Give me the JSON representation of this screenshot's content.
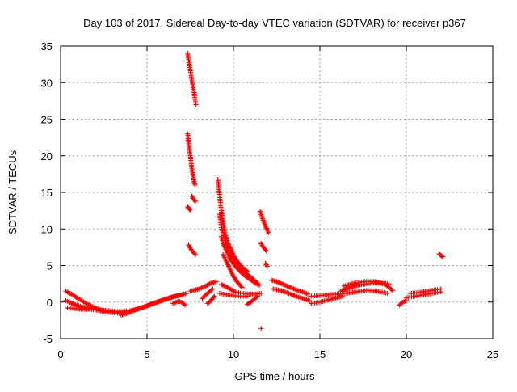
{
  "chart_data": {
    "type": "scatter",
    "title": "Day 103 of 2017, Sidereal Day-to-day VTEC variation (SDTVAR) for receiver p367",
    "xlabel": "GPS time / hours",
    "ylabel": "SDTVAR / TECUs",
    "xlim": [
      0,
      25
    ],
    "ylim": [
      -5,
      35
    ],
    "xticks": [
      "0",
      "5",
      "10",
      "15",
      "20",
      "25"
    ],
    "yticks": [
      "-5",
      "0",
      "5",
      "10",
      "15",
      "20",
      "25",
      "30",
      "35"
    ],
    "grid": true,
    "marker": "+",
    "legend": "none",
    "series": [
      {
        "name": "SDTVAR",
        "color": "#ff0000",
        "segments": [
          {
            "x": [
              0.3,
              0.7,
              1.0,
              1.5,
              2.0,
              2.5,
              3.0,
              3.5,
              3.8
            ],
            "y": [
              1.5,
              1.0,
              0.5,
              -0.2,
              -0.8,
              -1.2,
              -1.4,
              -1.3,
              -1.2
            ]
          },
          {
            "x": [
              0.3,
              0.8,
              1.3,
              1.8,
              2.3,
              2.8,
              3.3,
              3.7
            ],
            "y": [
              0.2,
              -0.3,
              -0.7,
              -1.0,
              -1.2,
              -1.4,
              -1.5,
              -1.5
            ]
          },
          {
            "x": [
              0.4,
              0.9,
              1.4,
              1.9,
              2.4,
              2.9,
              3.4,
              3.7
            ],
            "y": [
              -0.8,
              -0.9,
              -1.0,
              -1.0,
              -1.1,
              -1.2,
              -1.3,
              -1.4
            ]
          },
          {
            "x": [
              3.5,
              3.9,
              4.3,
              4.8,
              5.3,
              5.8,
              6.3,
              6.8,
              7.3
            ],
            "y": [
              -1.8,
              -1.5,
              -1.1,
              -0.7,
              -0.2,
              0.2,
              0.6,
              0.9,
              1.2
            ]
          },
          {
            "x": [
              4.0,
              4.5,
              5.0,
              5.5,
              6.0,
              6.5,
              7.0
            ],
            "y": [
              -1.2,
              -0.9,
              -0.5,
              -0.1,
              0.3,
              0.7,
              1.0
            ]
          },
          {
            "x": [
              6.5,
              6.8,
              7.0,
              7.2
            ],
            "y": [
              -0.2,
              0.1,
              0.0,
              -0.4
            ]
          },
          {
            "x": [
              7.35,
              7.45,
              7.55,
              7.65,
              7.75,
              7.82
            ],
            "y": [
              34.0,
              32.5,
              31.0,
              29.5,
              28.2,
              27.0
            ]
          },
          {
            "x": [
              7.35,
              7.42,
              7.5,
              7.58,
              7.65,
              7.72,
              7.78
            ],
            "y": [
              23.0,
              21.5,
              20.0,
              18.5,
              17.5,
              16.5,
              16.0
            ]
          },
          {
            "x": [
              7.6,
              7.7,
              7.8
            ],
            "y": [
              14.5,
              14.0,
              13.8
            ]
          },
          {
            "x": [
              7.35,
              7.42,
              7.5
            ],
            "y": [
              13.0,
              12.8,
              12.6
            ]
          },
          {
            "x": [
              7.4,
              7.5,
              7.6,
              7.7,
              7.8
            ],
            "y": [
              7.8,
              7.4,
              7.0,
              6.8,
              6.5
            ]
          },
          {
            "x": [
              7.5,
              8.0,
              8.4,
              8.7,
              9.0
            ],
            "y": [
              1.5,
              1.8,
              2.2,
              2.6,
              2.8
            ]
          },
          {
            "x": [
              8.2,
              8.4,
              8.6,
              8.8
            ],
            "y": [
              0.5,
              1.0,
              1.4,
              1.8
            ]
          },
          {
            "x": [
              8.5,
              8.7,
              8.9
            ],
            "y": [
              -0.2,
              0.2,
              0.8
            ]
          },
          {
            "x": [
              9.1,
              9.2,
              9.3,
              9.4,
              9.5,
              9.7,
              9.9,
              10.1,
              10.4,
              10.8
            ],
            "y": [
              16.8,
              14.5,
              12.5,
              11.0,
              9.5,
              8.0,
              7.0,
              6.0,
              5.0,
              4.2
            ]
          },
          {
            "x": [
              9.2,
              9.3,
              9.5,
              9.7,
              9.9,
              10.2,
              10.5,
              10.8,
              11.1,
              11.4
            ],
            "y": [
              12.0,
              10.2,
              8.6,
              7.3,
              6.2,
              5.3,
              4.5,
              3.8,
              3.2,
              2.6
            ]
          },
          {
            "x": [
              9.3,
              9.4,
              9.6,
              9.8,
              10.0,
              10.3,
              10.6,
              10.9,
              11.2,
              11.5
            ],
            "y": [
              9.0,
              8.0,
              7.0,
              6.0,
              5.2,
              4.4,
              3.7,
              3.2,
              2.7,
              2.3
            ]
          },
          {
            "x": [
              9.4,
              9.6,
              9.8,
              10.0,
              10.2,
              10.5
            ],
            "y": [
              6.5,
              5.5,
              4.5,
              3.5,
              2.8,
              2.0
            ]
          },
          {
            "x": [
              9.3,
              9.5,
              9.8,
              10.1,
              10.5,
              10.9,
              11.3,
              11.6
            ],
            "y": [
              2.4,
              2.2,
              1.8,
              1.4,
              1.2,
              1.1,
              1.1,
              1.2
            ]
          },
          {
            "x": [
              9.2,
              9.6,
              10.0,
              10.4,
              10.8
            ],
            "y": [
              1.2,
              1.0,
              0.9,
              0.8,
              0.8
            ]
          },
          {
            "x": [
              10.8,
              11.0,
              11.2,
              11.4
            ],
            "y": [
              -0.3,
              0.0,
              0.4,
              0.8
            ]
          },
          {
            "x": [
              11.55,
              11.65,
              11.75,
              11.85,
              11.95,
              12.02
            ],
            "y": [
              12.4,
              11.6,
              11.0,
              10.4,
              9.9,
              9.5
            ]
          },
          {
            "x": [
              11.6,
              11.7,
              11.8,
              11.9
            ],
            "y": [
              8.0,
              7.6,
              7.3,
              7.0
            ]
          },
          {
            "x": [
              11.85,
              11.95
            ],
            "y": [
              5.3,
              4.9
            ]
          },
          {
            "x": [
              11.6
            ],
            "y": [
              -3.6
            ]
          },
          {
            "x": [
              12.2,
              12.5,
              12.8,
              13.1,
              13.4,
              13.7,
              14.0,
              14.3
            ],
            "y": [
              3.0,
              2.8,
              2.5,
              2.2,
              1.9,
              1.6,
              1.4,
              1.1
            ]
          },
          {
            "x": [
              12.3,
              12.7,
              13.2,
              13.6,
              14.0,
              14.4
            ],
            "y": [
              1.8,
              1.6,
              1.2,
              0.8,
              0.5,
              0.2
            ]
          },
          {
            "x": [
              14.5,
              15.0,
              15.5,
              16.0,
              16.3
            ],
            "y": [
              -0.2,
              0.0,
              0.3,
              0.6,
              0.8
            ]
          },
          {
            "x": [
              14.5,
              15.0,
              15.5,
              16.0,
              16.4
            ],
            "y": [
              0.8,
              0.9,
              1.0,
              1.1,
              1.2
            ]
          },
          {
            "x": [
              16.2,
              16.8,
              17.4,
              18.0,
              18.6,
              19.0
            ],
            "y": [
              1.5,
              2.0,
              2.4,
              2.6,
              2.6,
              2.5
            ]
          },
          {
            "x": [
              16.4,
              17.0,
              17.6,
              18.2,
              18.8,
              19.2
            ],
            "y": [
              2.2,
              2.6,
              2.8,
              2.8,
              2.4,
              1.6
            ]
          },
          {
            "x": [
              16.5,
              17.1,
              17.7,
              18.3,
              18.9
            ],
            "y": [
              1.2,
              1.4,
              1.6,
              1.5,
              1.2
            ]
          },
          {
            "x": [
              19.6,
              19.8,
              20.0
            ],
            "y": [
              -0.4,
              0.0,
              0.2
            ]
          },
          {
            "x": [
              20.0,
              20.5,
              21.0,
              21.5,
              22.0
            ],
            "y": [
              0.6,
              0.8,
              1.0,
              1.2,
              1.4
            ]
          },
          {
            "x": [
              20.2,
              20.7,
              21.2,
              21.7,
              22.0
            ],
            "y": [
              1.2,
              1.3,
              1.5,
              1.7,
              1.8
            ]
          },
          {
            "x": [
              21.9,
              22.0,
              22.1
            ],
            "y": [
              6.6,
              6.4,
              6.2
            ]
          }
        ]
      }
    ]
  }
}
